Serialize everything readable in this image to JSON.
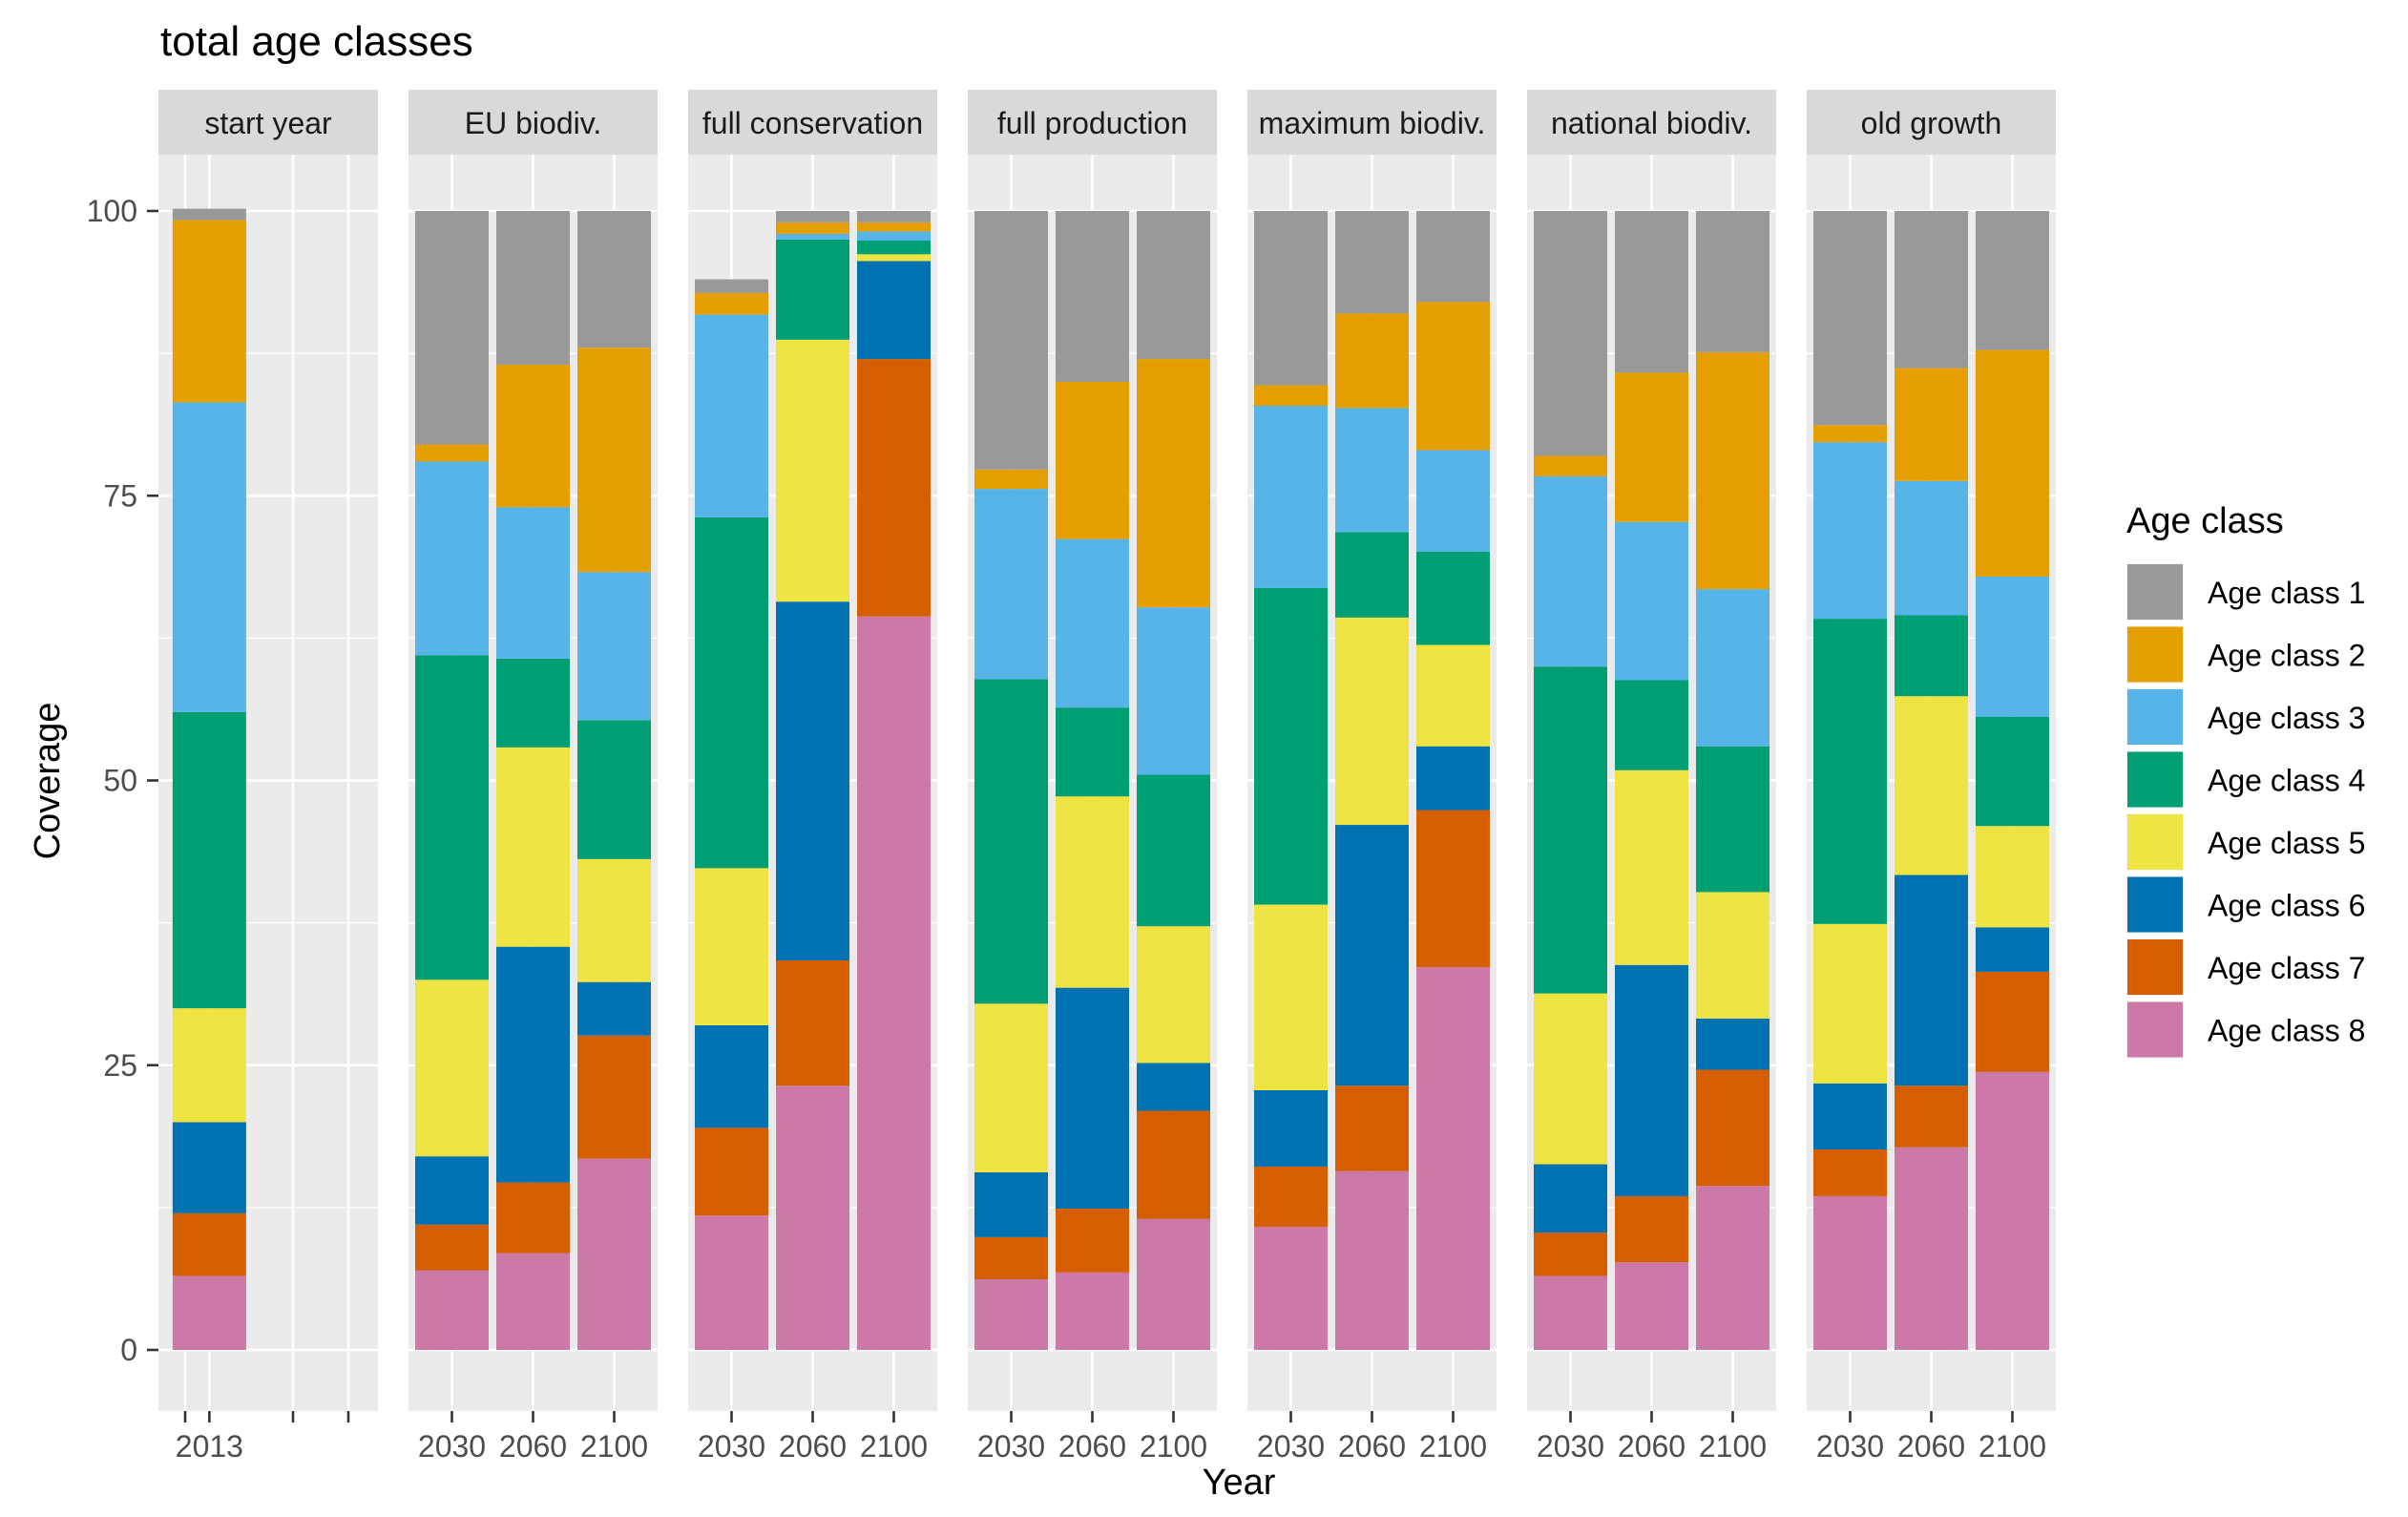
{
  "chart_data": {
    "type": "bar",
    "stacked": true,
    "title": "total age classes",
    "xlabel": "Year",
    "ylabel": "Coverage",
    "ylim": [
      -5,
      110
    ],
    "yticks": [
      0,
      25,
      50,
      75,
      100
    ],
    "grid": true,
    "legend": {
      "title": "Age class",
      "position": "right",
      "entries": [
        "Age class 1",
        "Age class 2",
        "Age class 3",
        "Age class 4",
        "Age class 5",
        "Age class 6",
        "Age class 7",
        "Age class 8"
      ]
    },
    "series_colors": {
      "Age class 1": "#999999",
      "Age class 2": "#E69F00",
      "Age class 3": "#56B4E9",
      "Age class 4": "#009E73",
      "Age class 5": "#F0E442",
      "Age class 6": "#0072B2",
      "Age class 7": "#D55E00",
      "Age class 8": "#CC79A7"
    },
    "stack_order_bottom_to_top": [
      "Age class 8",
      "Age class 7",
      "Age class 6",
      "Age class 5",
      "Age class 4",
      "Age class 3",
      "Age class 2",
      "Age class 1"
    ],
    "panels": [
      {
        "name": "start year",
        "categories": [
          "2013"
        ],
        "bars": [
          {
            "year": "2013",
            "values": {
              "Age class 1": 1.0,
              "Age class 2": 16.0,
              "Age class 3": 27.2,
              "Age class 4": 26.0,
              "Age class 5": 10.0,
              "Age class 6": 8.0,
              "Age class 7": 5.5,
              "Age class 8": 6.5
            }
          }
        ]
      },
      {
        "name": "EU biodiv.",
        "categories": [
          "2030",
          "2060",
          "2100"
        ],
        "bars": [
          {
            "year": "2030",
            "values": {
              "Age class 1": 20.5,
              "Age class 2": 1.5,
              "Age class 3": 17.0,
              "Age class 4": 28.5,
              "Age class 5": 15.5,
              "Age class 6": 6.0,
              "Age class 7": 4.0,
              "Age class 8": 7.0
            }
          },
          {
            "year": "2060",
            "values": {
              "Age class 1": 13.5,
              "Age class 2": 12.5,
              "Age class 3": 13.3,
              "Age class 4": 7.8,
              "Age class 5": 17.5,
              "Age class 6": 20.7,
              "Age class 7": 6.2,
              "Age class 8": 8.5
            }
          },
          {
            "year": "2100",
            "values": {
              "Age class 1": 12.0,
              "Age class 2": 19.7,
              "Age class 3": 13.0,
              "Age class 4": 12.2,
              "Age class 5": 10.8,
              "Age class 6": 4.7,
              "Age class 7": 10.8,
              "Age class 8": 16.8
            }
          }
        ]
      },
      {
        "name": "full conservation",
        "categories": [
          "2030",
          "2060",
          "2100"
        ],
        "bars": [
          {
            "year": "2030",
            "values": {
              "Age class 1": 1.2,
              "Age class 2": 1.9,
              "Age class 3": 17.8,
              "Age class 4": 30.8,
              "Age class 5": 13.8,
              "Age class 6": 9.0,
              "Age class 7": 7.7,
              "Age class 8": 11.8
            }
          },
          {
            "year": "2060",
            "values": {
              "Age class 1": 1.0,
              "Age class 2": 1.0,
              "Age class 3": 0.5,
              "Age class 4": 8.8,
              "Age class 5": 23.0,
              "Age class 6": 31.5,
              "Age class 7": 11.0,
              "Age class 8": 23.2
            }
          },
          {
            "year": "2100",
            "values": {
              "Age class 1": 1.0,
              "Age class 2": 0.8,
              "Age class 3": 0.8,
              "Age class 4": 1.2,
              "Age class 5": 0.6,
              "Age class 6": 8.6,
              "Age class 7": 22.6,
              "Age class 8": 64.4
            }
          }
        ]
      },
      {
        "name": "full production",
        "categories": [
          "2030",
          "2060",
          "2100"
        ],
        "bars": [
          {
            "year": "2030",
            "values": {
              "Age class 1": 22.7,
              "Age class 2": 1.7,
              "Age class 3": 16.7,
              "Age class 4": 28.5,
              "Age class 5": 14.8,
              "Age class 6": 5.7,
              "Age class 7": 3.7,
              "Age class 8": 6.2
            }
          },
          {
            "year": "2060",
            "values": {
              "Age class 1": 15.0,
              "Age class 2": 13.8,
              "Age class 3": 14.8,
              "Age class 4": 7.8,
              "Age class 5": 16.8,
              "Age class 6": 19.4,
              "Age class 7": 5.6,
              "Age class 8": 6.8
            }
          },
          {
            "year": "2100",
            "values": {
              "Age class 1": 13.0,
              "Age class 2": 21.8,
              "Age class 3": 14.7,
              "Age class 4": 13.3,
              "Age class 5": 12.0,
              "Age class 6": 4.2,
              "Age class 7": 9.5,
              "Age class 8": 11.5
            }
          }
        ]
      },
      {
        "name": "maximum biodiv.",
        "categories": [
          "2030",
          "2060",
          "2100"
        ],
        "bars": [
          {
            "year": "2030",
            "values": {
              "Age class 1": 15.3,
              "Age class 2": 1.8,
              "Age class 3": 16.0,
              "Age class 4": 27.8,
              "Age class 5": 16.3,
              "Age class 6": 6.7,
              "Age class 7": 5.3,
              "Age class 8": 10.8
            }
          },
          {
            "year": "2060",
            "values": {
              "Age class 1": 9.0,
              "Age class 2": 8.3,
              "Age class 3": 10.9,
              "Age class 4": 7.5,
              "Age class 5": 18.2,
              "Age class 6": 22.9,
              "Age class 7": 7.5,
              "Age class 8": 15.7
            }
          },
          {
            "year": "2100",
            "values": {
              "Age class 1": 8.0,
              "Age class 2": 13.0,
              "Age class 3": 8.9,
              "Age class 4": 8.2,
              "Age class 5": 8.9,
              "Age class 6": 5.6,
              "Age class 7": 13.8,
              "Age class 8": 33.6
            }
          }
        ]
      },
      {
        "name": "national biodiv.",
        "categories": [
          "2030",
          "2060",
          "2100"
        ],
        "bars": [
          {
            "year": "2030",
            "values": {
              "Age class 1": 21.5,
              "Age class 2": 1.8,
              "Age class 3": 16.7,
              "Age class 4": 28.7,
              "Age class 5": 15.0,
              "Age class 6": 6.0,
              "Age class 7": 3.8,
              "Age class 8": 6.5
            }
          },
          {
            "year": "2060",
            "values": {
              "Age class 1": 14.2,
              "Age class 2": 13.1,
              "Age class 3": 13.9,
              "Age class 4": 7.9,
              "Age class 5": 17.1,
              "Age class 6": 20.3,
              "Age class 7": 5.8,
              "Age class 8": 7.7
            }
          },
          {
            "year": "2100",
            "values": {
              "Age class 1": 12.4,
              "Age class 2": 20.8,
              "Age class 3": 13.8,
              "Age class 4": 12.8,
              "Age class 5": 11.1,
              "Age class 6": 4.5,
              "Age class 7": 10.2,
              "Age class 8": 14.4
            }
          }
        ]
      },
      {
        "name": "old growth",
        "categories": [
          "2030",
          "2060",
          "2100"
        ],
        "bars": [
          {
            "year": "2030",
            "values": {
              "Age class 1": 18.8,
              "Age class 2": 1.5,
              "Age class 3": 15.5,
              "Age class 4": 26.8,
              "Age class 5": 14.0,
              "Age class 6": 5.8,
              "Age class 7": 4.1,
              "Age class 8": 13.5
            }
          },
          {
            "year": "2060",
            "values": {
              "Age class 1": 13.8,
              "Age class 2": 9.9,
              "Age class 3": 11.8,
              "Age class 4": 7.1,
              "Age class 5": 15.7,
              "Age class 6": 18.5,
              "Age class 7": 5.4,
              "Age class 8": 17.8
            }
          },
          {
            "year": "2100",
            "values": {
              "Age class 1": 12.2,
              "Age class 2": 19.9,
              "Age class 3": 12.3,
              "Age class 4": 9.6,
              "Age class 5": 8.9,
              "Age class 6": 3.9,
              "Age class 7": 8.8,
              "Age class 8": 24.4
            }
          }
        ]
      }
    ]
  }
}
